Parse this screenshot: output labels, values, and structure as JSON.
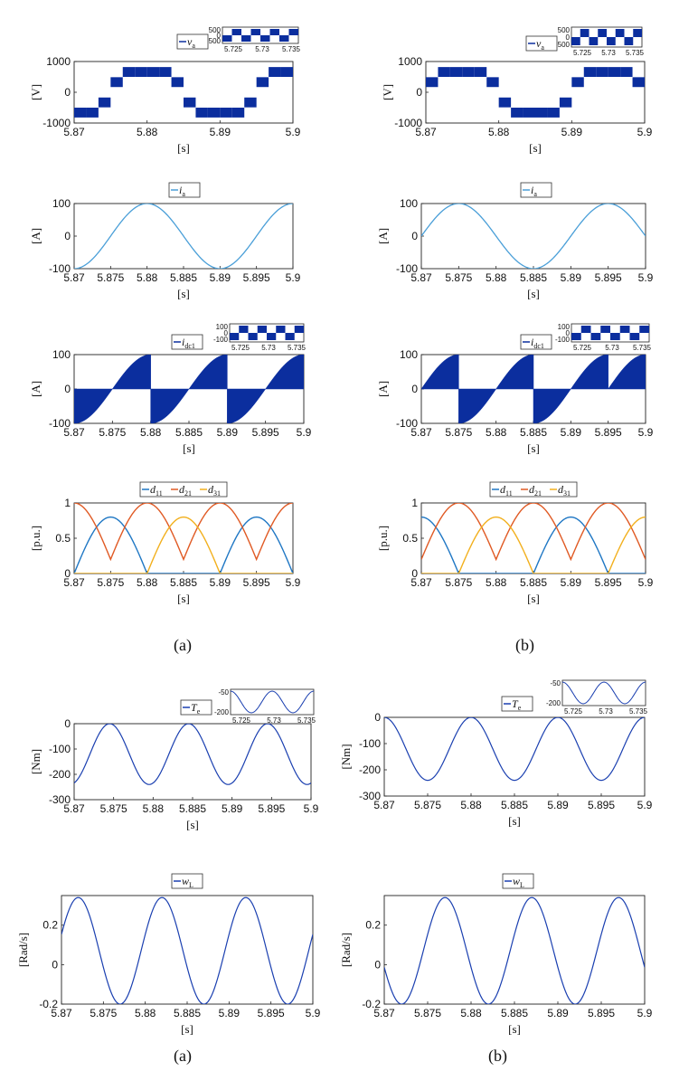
{
  "captions": [
    "(a)",
    "(b)",
    "(a)",
    "(b)"
  ],
  "chart_data": [
    {
      "id": "va-a",
      "type": "line",
      "ylabel": "[V]",
      "xlabel": "[s]",
      "legend": [
        "v_a"
      ],
      "xlim": [
        5.87,
        5.9
      ],
      "ylim": [
        -1000,
        1000
      ],
      "xticks": [
        "5.87",
        "5.88",
        "5.89",
        "5.9"
      ],
      "yticks": [
        "1000",
        "0",
        "-1000"
      ],
      "series": [
        {
          "name": "v_a",
          "color": "#0b2e9e",
          "waveform": "multilevel PWM, 4 levels, ±2/3·Vdc envelope",
          "period_s": 0.02,
          "zero_cross_s": 5.875
        }
      ],
      "inset": {
        "xticks": [
          "5.725",
          "5.73",
          "5.735"
        ],
        "yticks": [
          "500",
          "0",
          "-500"
        ]
      }
    },
    {
      "id": "va-b",
      "type": "line",
      "ylabel": "[V]",
      "xlabel": "[s]",
      "legend": [
        "v_a"
      ],
      "xlim": [
        5.87,
        5.9
      ],
      "ylim": [
        -1000,
        1000
      ],
      "xticks": [
        "5.87",
        "5.88",
        "5.89",
        "5.9"
      ],
      "yticks": [
        "1000",
        "0",
        "-1000"
      ],
      "series": [
        {
          "name": "v_a",
          "color": "#0b2e9e",
          "waveform": "multilevel PWM",
          "period_s": 0.02,
          "zero_cross_s": 5.87
        }
      ],
      "inset": {
        "xticks": [
          "5.725",
          "5.73",
          "5.735"
        ],
        "yticks": [
          "500",
          "0",
          "-500"
        ]
      }
    },
    {
      "id": "ia-a",
      "type": "line",
      "ylabel": "[A]",
      "xlabel": "[s]",
      "legend": [
        "i_a"
      ],
      "xlim": [
        5.87,
        5.9
      ],
      "ylim": [
        -100,
        100
      ],
      "xticks": [
        "5.87",
        "5.875",
        "5.88",
        "5.885",
        "5.89",
        "5.895",
        "5.9"
      ],
      "yticks": [
        "100",
        "0",
        "-100"
      ],
      "series": [
        {
          "name": "i_a",
          "color": "#4a9fd8",
          "amplitude": 100,
          "period_s": 0.02,
          "peak_s": 5.88
        }
      ]
    },
    {
      "id": "ia-b",
      "type": "line",
      "ylabel": "[A]",
      "xlabel": "[s]",
      "legend": [
        "i_a"
      ],
      "xlim": [
        5.87,
        5.9
      ],
      "ylim": [
        -100,
        100
      ],
      "xticks": [
        "5.87",
        "5.875",
        "5.88",
        "5.885",
        "5.89",
        "5.895",
        "5.9"
      ],
      "yticks": [
        "100",
        "0",
        "-100"
      ],
      "series": [
        {
          "name": "i_a",
          "color": "#4a9fd8",
          "amplitude": 100,
          "period_s": 0.02,
          "peak_s": 5.875
        }
      ]
    },
    {
      "id": "idc-a",
      "type": "area",
      "ylabel": "[A]",
      "xlabel": "[s]",
      "legend": [
        "i_dc1"
      ],
      "xlim": [
        5.87,
        5.9
      ],
      "ylim": [
        -100,
        100
      ],
      "xticks": [
        "5.87",
        "5.875",
        "5.88",
        "5.885",
        "5.89",
        "5.895",
        "5.9"
      ],
      "yticks": [
        "100",
        "0",
        "-100"
      ],
      "series": [
        {
          "name": "i_dc1",
          "color": "#0b2e9e",
          "envelope_amplitude": 100,
          "period_s": 0.01,
          "jump_s": [
            5.88,
            5.89
          ]
        }
      ],
      "inset": {
        "xticks": [
          "5.725",
          "5.73",
          "5.735"
        ],
        "yticks": [
          "100",
          "0",
          "-100"
        ]
      }
    },
    {
      "id": "idc-b",
      "type": "area",
      "ylabel": "[A]",
      "xlabel": "[s]",
      "legend": [
        "i_dc1"
      ],
      "xlim": [
        5.87,
        5.9
      ],
      "ylim": [
        -100,
        100
      ],
      "xticks": [
        "5.87",
        "5.875",
        "5.88",
        "5.885",
        "5.89",
        "5.895",
        "5.9"
      ],
      "yticks": [
        "100",
        "0",
        "-100"
      ],
      "series": [
        {
          "name": "i_dc1",
          "color": "#0b2e9e",
          "envelope_amplitude": 100,
          "period_s": 0.01,
          "jump_s": [
            5.875,
            5.885,
            5.895
          ]
        }
      ],
      "inset": {
        "xticks": [
          "5.725",
          "5.73",
          "5.735"
        ],
        "yticks": [
          "100",
          "0",
          "-100"
        ]
      }
    },
    {
      "id": "d-a",
      "type": "line",
      "ylabel": "[p.u.]",
      "xlabel": "[s]",
      "legend": [
        "d_11",
        "d_21",
        "d_31"
      ],
      "xlim": [
        5.87,
        5.9
      ],
      "ylim": [
        0,
        1
      ],
      "xticks": [
        "5.87",
        "5.875",
        "5.88",
        "5.885",
        "5.89",
        "5.895",
        "5.9"
      ],
      "yticks": [
        "1",
        "0.5",
        "0"
      ],
      "series": [
        {
          "name": "d_11",
          "color": "#1f77c4"
        },
        {
          "name": "d_21",
          "color": "#e05a24"
        },
        {
          "name": "d_31",
          "color": "#f2b01e"
        }
      ]
    },
    {
      "id": "d-b",
      "type": "line",
      "ylabel": "[p.u.]",
      "xlabel": "[s]",
      "legend": [
        "d_11",
        "d_21",
        "d_31"
      ],
      "xlim": [
        5.87,
        5.9
      ],
      "ylim": [
        0,
        1
      ],
      "xticks": [
        "5.87",
        "5.875",
        "5.88",
        "5.885",
        "5.89",
        "5.895",
        "5.9"
      ],
      "yticks": [
        "1",
        "0.5",
        "0"
      ],
      "series": [
        {
          "name": "d_11",
          "color": "#1f77c4"
        },
        {
          "name": "d_21",
          "color": "#e05a24"
        },
        {
          "name": "d_31",
          "color": "#f2b01e"
        }
      ]
    },
    {
      "id": "te-a",
      "type": "line",
      "ylabel": "[Nm]",
      "xlabel": "[s]",
      "legend": [
        "T_e"
      ],
      "xlim": [
        5.87,
        5.9
      ],
      "ylim": [
        -300,
        0
      ],
      "xticks": [
        "5.87",
        "5.875",
        "5.88",
        "5.885",
        "5.89",
        "5.895",
        "5.9"
      ],
      "yticks": [
        "0",
        "-100",
        "-200",
        "-300"
      ],
      "series": [
        {
          "name": "T_e",
          "color": "#1a3fb0",
          "min": -240,
          "max": 0,
          "period_s": 0.01,
          "peak_s": 5.8745
        }
      ],
      "inset": {
        "xticks": [
          "5.725",
          "5.73",
          "5.735"
        ],
        "yticks": [
          "-50",
          "-200"
        ]
      }
    },
    {
      "id": "te-b",
      "type": "line",
      "ylabel": "[Nm]",
      "xlabel": "[s]",
      "legend": [
        "T_e"
      ],
      "xlim": [
        5.87,
        5.9
      ],
      "ylim": [
        -300,
        0
      ],
      "xticks": [
        "5.87",
        "5.875",
        "5.88",
        "5.885",
        "5.89",
        "5.895",
        "5.9"
      ],
      "yticks": [
        "0",
        "-100",
        "-200",
        "-300"
      ],
      "series": [
        {
          "name": "T_e",
          "color": "#1a3fb0",
          "min": -240,
          "max": 0,
          "period_s": 0.01,
          "peak_s": 5.87
        }
      ],
      "inset": {
        "xticks": [
          "5.725",
          "5.73",
          "5.735"
        ],
        "yticks": [
          "-50",
          "-200"
        ]
      }
    },
    {
      "id": "wl-a",
      "type": "line",
      "ylabel": "[Rad/s]",
      "xlabel": "[s]",
      "legend": [
        "w_L"
      ],
      "xlim": [
        5.87,
        5.9
      ],
      "ylim": [
        -0.2,
        0.35
      ],
      "xticks": [
        "5.87",
        "5.875",
        "5.88",
        "5.885",
        "5.89",
        "5.895",
        "5.9"
      ],
      "yticks": [
        "0.2",
        "0",
        "-0.2"
      ],
      "series": [
        {
          "name": "w_L",
          "color": "#1a3fb0",
          "min": -0.2,
          "max": 0.34,
          "period_s": 0.01,
          "peak_s": 5.872
        }
      ]
    },
    {
      "id": "wl-b",
      "type": "line",
      "ylabel": "[Rad/s]",
      "xlabel": "[s]",
      "legend": [
        "w_L"
      ],
      "xlim": [
        5.87,
        5.9
      ],
      "ylim": [
        -0.2,
        0.35
      ],
      "xticks": [
        "5.87",
        "5.875",
        "5.88",
        "5.885",
        "5.89",
        "5.895",
        "5.9"
      ],
      "yticks": [
        "0.2",
        "0",
        "-0.2"
      ],
      "series": [
        {
          "name": "w_L",
          "color": "#1a3fb0",
          "min": -0.2,
          "max": 0.34,
          "period_s": 0.01,
          "peak_s": 5.877
        }
      ]
    }
  ]
}
